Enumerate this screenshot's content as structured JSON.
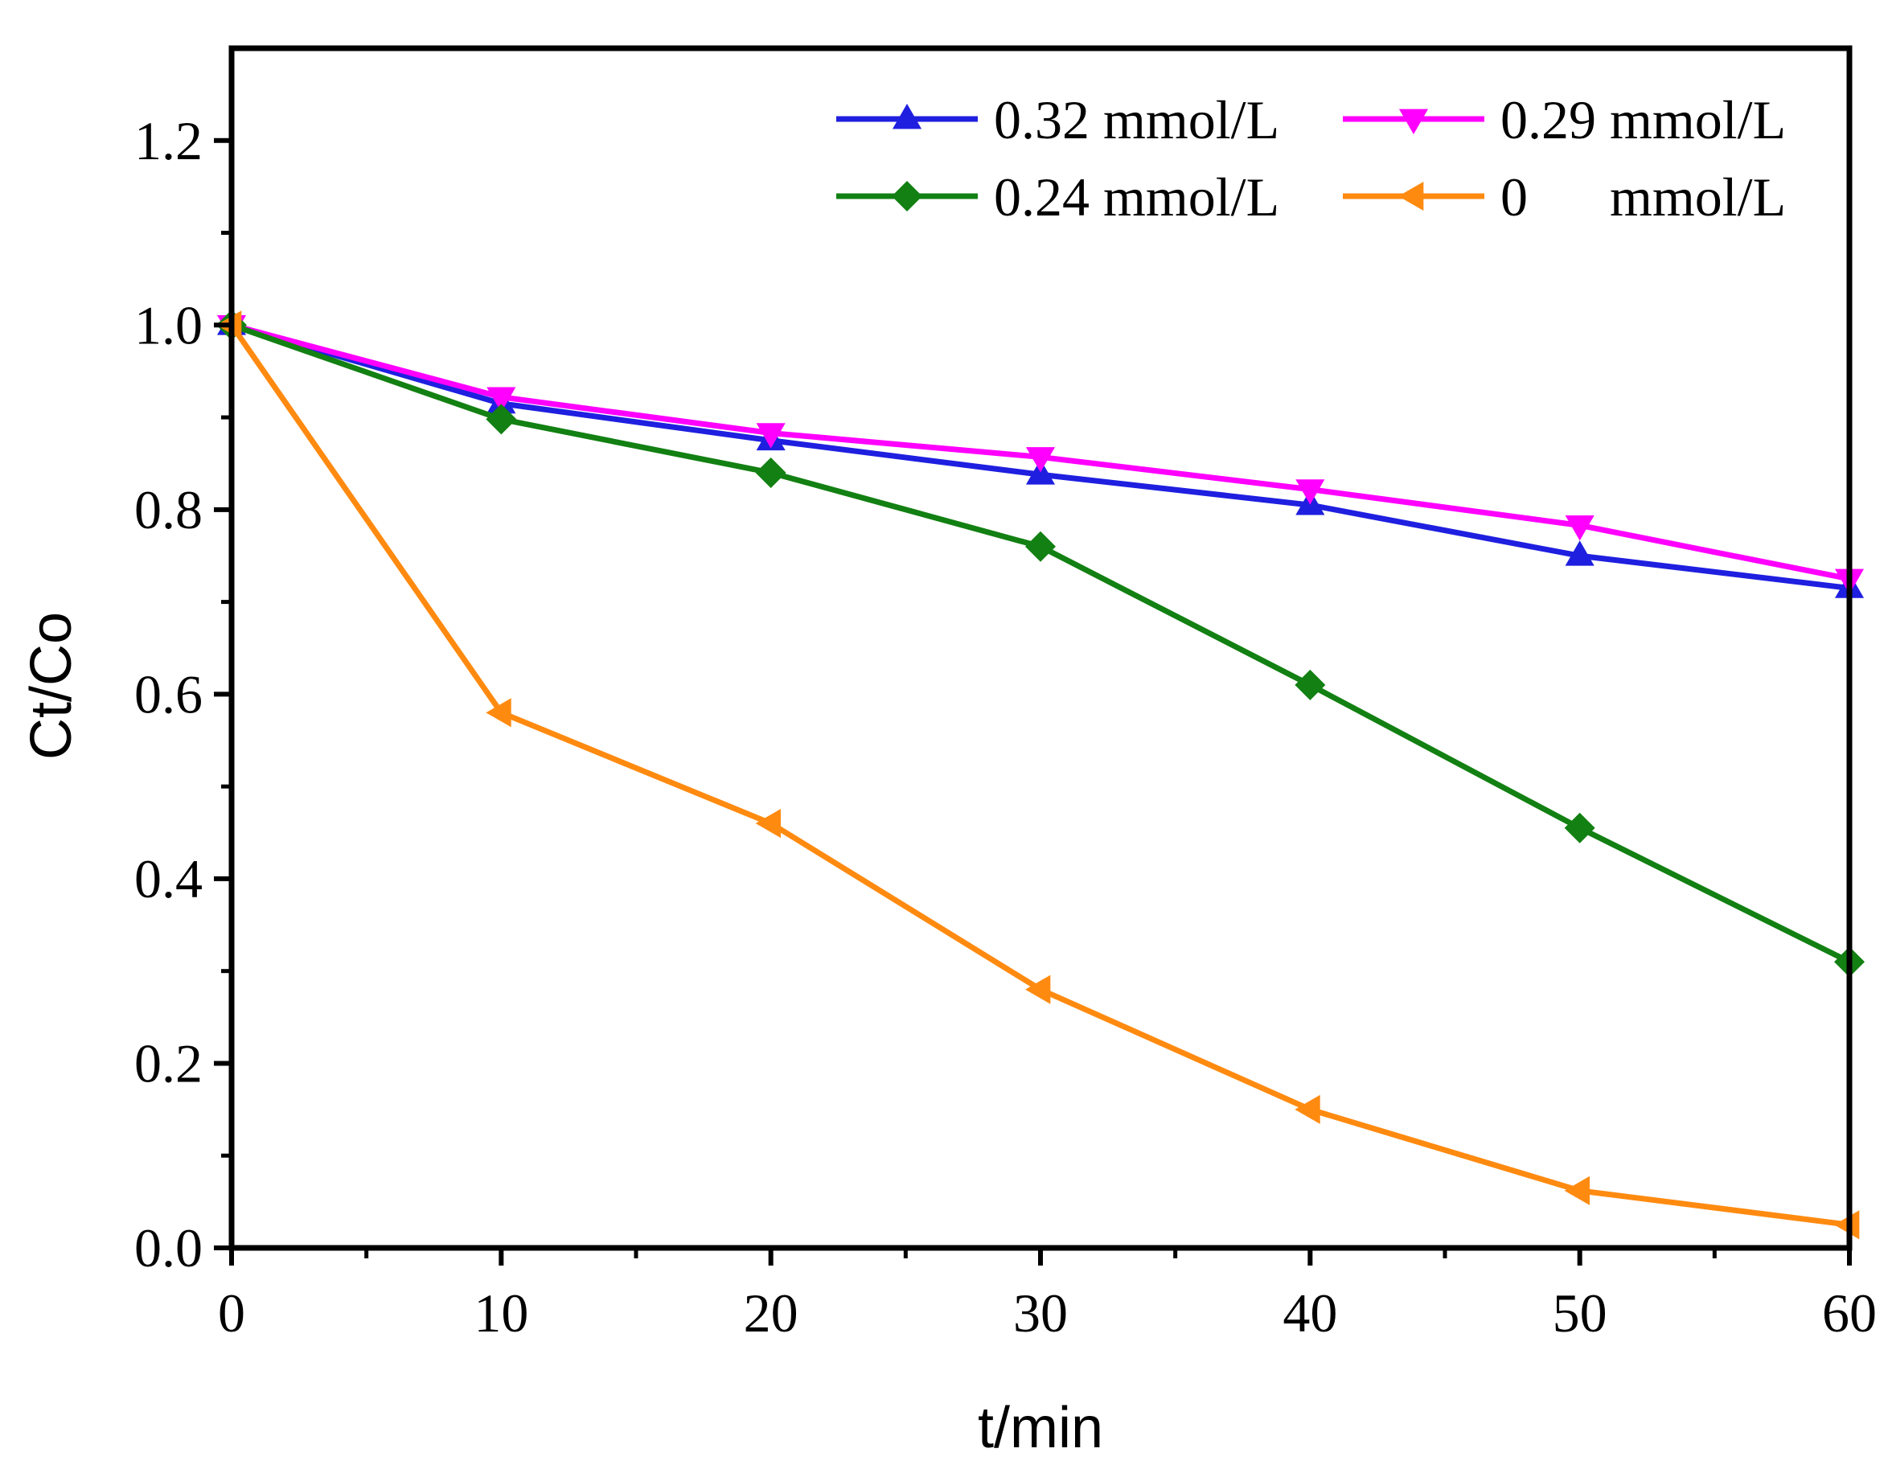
{
  "chart_data": {
    "type": "line",
    "title": "",
    "xlabel": "t/min",
    "ylabel": "Ct/Co",
    "xlim": [
      0,
      60
    ],
    "ylim": [
      0,
      1.3
    ],
    "x_ticks": [
      "0",
      "10",
      "20",
      "30",
      "40",
      "50",
      "60"
    ],
    "y_ticks": [
      "0.0",
      "0.2",
      "0.4",
      "0.6",
      "0.8",
      "1.0",
      "1.2"
    ],
    "x": [
      0,
      10,
      20,
      30,
      40,
      50,
      60
    ],
    "series": [
      {
        "name": "0.32 mmol/L",
        "color": "#1f1fe0",
        "marker": "triangle-up",
        "values": [
          1.0,
          0.915,
          0.875,
          0.838,
          0.805,
          0.75,
          0.715
        ]
      },
      {
        "name": "0.29 mmol/L",
        "color": "#ff00ff",
        "marker": "triangle-down",
        "values": [
          1.0,
          0.922,
          0.883,
          0.857,
          0.822,
          0.783,
          0.725
        ]
      },
      {
        "name": "0.24 mmol/L",
        "color": "#128012",
        "marker": "diamond",
        "values": [
          1.0,
          0.898,
          0.84,
          0.76,
          0.61,
          0.455,
          0.31
        ]
      },
      {
        "name": "0      mmol/L",
        "color": "#ff8a10",
        "marker": "triangle-left",
        "values": [
          1.0,
          0.58,
          0.46,
          0.28,
          0.15,
          0.062,
          0.025
        ]
      }
    ],
    "legend_position": "top-right"
  }
}
